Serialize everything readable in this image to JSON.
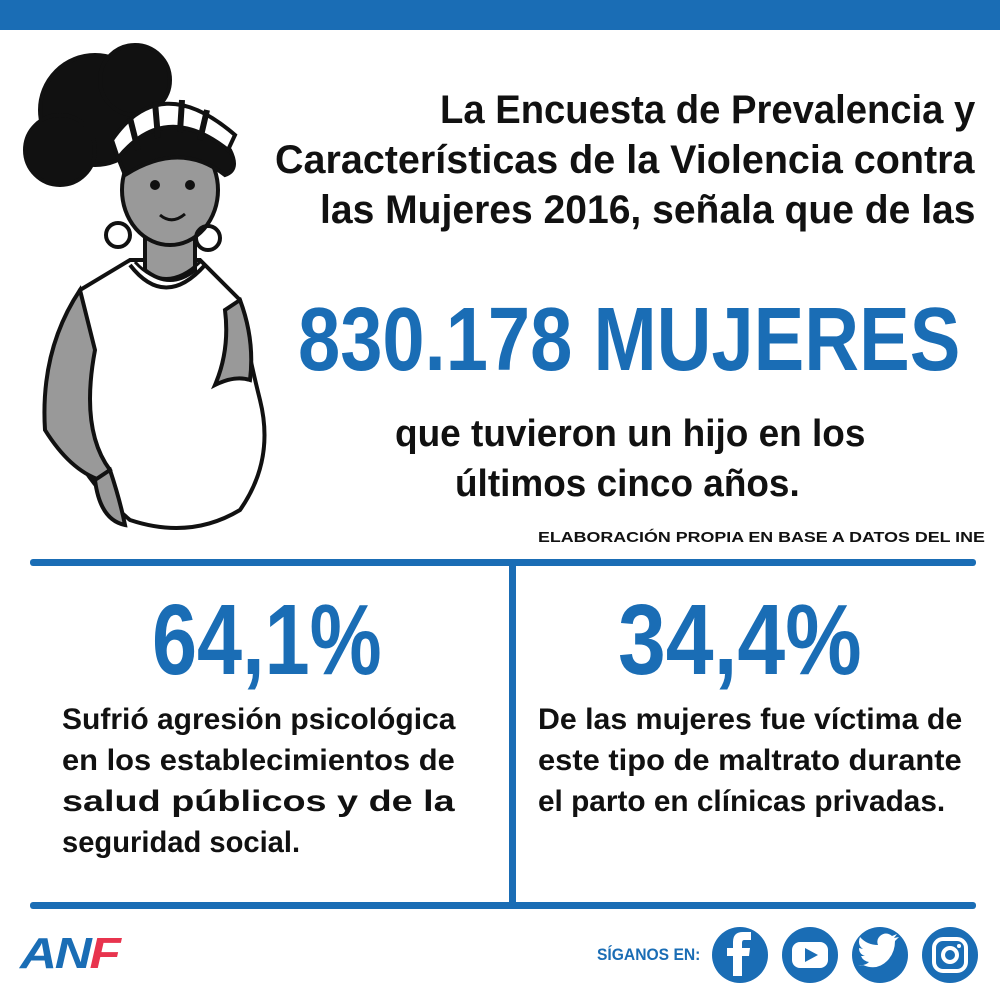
{
  "intro": {
    "lines": [
      "La Encuesta de Prevalencia y",
      "Características de la Violencia contra",
      "las Mujeres 2016, señala que de las"
    ]
  },
  "headline": "830.178 MUJERES",
  "subtext": {
    "lines": [
      "que tuvieron un hijo en los",
      "últimos cinco años."
    ]
  },
  "source": "ELABORACIÓN PROPIA EN BASE A DATOS DEL INE",
  "stats": [
    {
      "value": "64,1%",
      "lines": [
        "Sufrió agresión psicológica",
        "en los establecimientos de",
        "salud públicos y de la",
        "seguridad social."
      ]
    },
    {
      "value": "34,4%",
      "lines": [
        "De las mujeres fue víctima de",
        "este tipo de maltrato durante",
        "el parto en clínicas privadas."
      ]
    }
  ],
  "footer": {
    "logo": {
      "main": "AN",
      "accent": "F"
    },
    "follow": "SÍGANOS EN:"
  }
}
